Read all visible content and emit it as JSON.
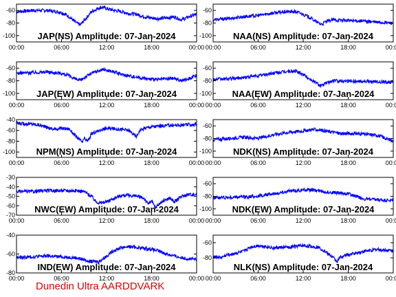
{
  "footer": "Dunedin Ultra AARDDVARK",
  "chart_data": [
    {
      "type": "line",
      "title": "JAP(NS) Amplitude: 07-Jan-2024",
      "xlim": [
        0,
        24
      ],
      "ylim": [
        -110,
        -50
      ],
      "yticks": [
        -60,
        -80,
        -100
      ],
      "xtick_labels": [
        "00:00",
        "06:00",
        "12:00",
        "18:00",
        "00:00"
      ],
      "series": [
        {
          "x": [
            0,
            2,
            4,
            6,
            7,
            8,
            8.5,
            9,
            10,
            11,
            11.5,
            12,
            13,
            14,
            15,
            16,
            17,
            18,
            19,
            20,
            21,
            22,
            23,
            24
          ],
          "y": [
            -62,
            -60,
            -60,
            -63,
            -70,
            -80,
            -83,
            -76,
            -62,
            -56,
            -55,
            -57,
            -60,
            -62,
            -65,
            -66,
            -70,
            -72,
            -73,
            -72,
            -70,
            -75,
            -70,
            -66
          ]
        }
      ]
    },
    {
      "type": "line",
      "title": "NAA(NS) Amplitude: 07-Jan-2024",
      "xlim": [
        0,
        24
      ],
      "ylim": [
        -110,
        -50
      ],
      "yticks": [
        -60,
        -80,
        -100
      ],
      "xtick_labels": [
        "00:00",
        "06:00",
        "12:00",
        "18:00",
        "00:00"
      ],
      "series": [
        {
          "x": [
            0,
            2,
            4,
            6,
            8,
            10,
            11,
            12,
            13,
            14,
            14.5,
            15,
            16,
            18,
            20,
            22,
            24
          ],
          "y": [
            -75,
            -73,
            -70,
            -68,
            -64,
            -62,
            -62,
            -66,
            -72,
            -80,
            -82,
            -78,
            -75,
            -76,
            -77,
            -79,
            -80
          ]
        }
      ]
    },
    {
      "type": "line",
      "title": "JAP(EW) Amplitude: 07-Jan-2024",
      "xlim": [
        0,
        24
      ],
      "ylim": [
        -110,
        -50
      ],
      "yticks": [
        -60,
        -80,
        -100
      ],
      "xtick_labels": [
        "00:00",
        "06:00",
        "12:00",
        "18:00",
        "00:00"
      ],
      "series": [
        {
          "x": [
            0,
            2,
            4,
            6,
            7,
            8,
            8.5,
            9,
            10,
            11,
            11.5,
            12,
            13,
            14,
            15,
            16,
            17,
            18,
            19,
            20,
            21,
            22,
            23,
            24
          ],
          "y": [
            -68,
            -67,
            -66,
            -68,
            -72,
            -78,
            -80,
            -75,
            -68,
            -64,
            -62,
            -63,
            -66,
            -70,
            -72,
            -74,
            -76,
            -78,
            -78,
            -77,
            -76,
            -80,
            -76,
            -72
          ]
        }
      ]
    },
    {
      "type": "line",
      "title": "NAA(EW) Amplitude: 07-Jan-2024",
      "xlim": [
        0,
        24
      ],
      "ylim": [
        -110,
        -50
      ],
      "yticks": [
        -60,
        -80,
        -100
      ],
      "xtick_labels": [
        "00:00",
        "06:00",
        "12:00",
        "18:00",
        "00:00"
      ],
      "series": [
        {
          "x": [
            0,
            2,
            4,
            6,
            8,
            10,
            11,
            12,
            13,
            14,
            14.5,
            15,
            16,
            18,
            20,
            22,
            24
          ],
          "y": [
            -78,
            -77,
            -75,
            -72,
            -68,
            -65,
            -65,
            -70,
            -78,
            -85,
            -88,
            -84,
            -80,
            -80,
            -81,
            -82,
            -82
          ]
        }
      ]
    },
    {
      "type": "line",
      "title": "NPM(NS) Amplitude: 07-Jan-2024",
      "xlim": [
        0,
        24
      ],
      "ylim": [
        -110,
        -40
      ],
      "yticks": [
        -40,
        -60,
        -80,
        -100
      ],
      "xtick_labels": [
        "00:00",
        "06:00",
        "12:00",
        "18:00",
        "00:00"
      ],
      "series": [
        {
          "x": [
            0,
            2,
            3,
            4,
            5,
            6,
            7,
            8,
            8.8,
            9,
            9.5,
            10,
            11,
            12,
            13,
            14,
            15,
            15.5,
            16,
            16.3,
            17,
            18,
            20,
            22,
            24
          ],
          "y": [
            -47,
            -48,
            -50,
            -54,
            -58,
            -56,
            -57,
            -72,
            -82,
            -75,
            -80,
            -66,
            -60,
            -56,
            -57,
            -58,
            -60,
            -66,
            -72,
            -62,
            -56,
            -53,
            -51,
            -50,
            -49
          ]
        }
      ]
    },
    {
      "type": "line",
      "title": "NDK(NS) Amplitude: 07-Jan-2024",
      "xlim": [
        0,
        24
      ],
      "ylim": [
        -110,
        -50
      ],
      "yticks": [
        -60,
        -80,
        -100
      ],
      "xtick_labels": [
        "00:00",
        "06:00",
        "12:00",
        "18:00",
        "00:00"
      ],
      "series": [
        {
          "x": [
            0,
            2,
            4,
            6,
            8,
            10,
            12,
            13,
            14,
            15,
            16,
            17,
            18,
            19,
            20,
            22,
            23,
            24
          ],
          "y": [
            -82,
            -80,
            -78,
            -80,
            -74,
            -70,
            -68,
            -66,
            -66,
            -68,
            -70,
            -72,
            -72,
            -72,
            -73,
            -75,
            -80,
            -84
          ]
        }
      ]
    },
    {
      "type": "line",
      "title": "NWC(EW) Amplitude: 07-Jan-2024",
      "xlim": [
        0,
        24
      ],
      "ylim": [
        -70,
        -30
      ],
      "yticks": [
        -30,
        -40,
        -50,
        -60,
        -70
      ],
      "xtick_labels": [
        "00:00",
        "06:00",
        "12:00",
        "18:00",
        "00:00"
      ],
      "series": [
        {
          "x": [
            0,
            2,
            4,
            6,
            8,
            9,
            10,
            10.5,
            11,
            12,
            13,
            14,
            15,
            16,
            17,
            17.5,
            18,
            18.5,
            19,
            20,
            20.5,
            21,
            22,
            23,
            24
          ],
          "y": [
            -45,
            -45,
            -44,
            -44,
            -44,
            -45,
            -50,
            -55,
            -57,
            -56,
            -52,
            -49,
            -49,
            -50,
            -52,
            -58,
            -55,
            -62,
            -58,
            -53,
            -52,
            -56,
            -50,
            -48,
            -48
          ]
        }
      ]
    },
    {
      "type": "line",
      "title": "NDK(EW) Amplitude: 07-Jan-2024",
      "xlim": [
        0,
        24
      ],
      "ylim": [
        -110,
        -50
      ],
      "yticks": [
        -60,
        -80,
        -100
      ],
      "xtick_labels": [
        "00:00",
        "06:00",
        "12:00",
        "18:00",
        "00:00"
      ],
      "series": [
        {
          "x": [
            0,
            2,
            4,
            6,
            8,
            10,
            12,
            13,
            14,
            15,
            16,
            17,
            18,
            19,
            20,
            22,
            24
          ],
          "y": [
            -82,
            -82,
            -81,
            -80,
            -76,
            -72,
            -70,
            -70,
            -71,
            -73,
            -74,
            -75,
            -76,
            -80,
            -84,
            -86,
            -87
          ]
        }
      ]
    },
    {
      "type": "line",
      "title": "IND(EW) Amplitude: 07-Jan-2024",
      "xlim": [
        0,
        24
      ],
      "ylim": [
        -80,
        -40
      ],
      "yticks": [
        -40,
        -60,
        -80
      ],
      "xtick_labels": [
        "00:00",
        "06:00",
        "12:00",
        "18:00",
        "00:00"
      ],
      "series": [
        {
          "x": [
            0,
            2,
            4,
            6,
            8,
            9,
            10,
            11,
            12,
            13,
            14,
            15,
            16,
            17,
            18,
            19,
            20,
            21,
            22,
            23,
            24
          ],
          "y": [
            -64,
            -63,
            -62,
            -63,
            -64,
            -66,
            -68,
            -68,
            -62,
            -56,
            -53,
            -52,
            -53,
            -54,
            -55,
            -57,
            -60,
            -62,
            -64,
            -65,
            -66
          ]
        }
      ]
    },
    {
      "type": "line",
      "title": "NLK(NS) Amplitude: 07-Jan-2024",
      "xlim": [
        0,
        24
      ],
      "ylim": [
        -100,
        -50
      ],
      "yticks": [
        -60,
        -80
      ],
      "xtick_labels": [
        "00:00",
        "06:00",
        "12:00",
        "18:00",
        "00:00"
      ],
      "series": [
        {
          "x": [
            0,
            1,
            2,
            4,
            5,
            6,
            7,
            8,
            10,
            12,
            14,
            15,
            16,
            16.5,
            17,
            18,
            19,
            20,
            21,
            22,
            24
          ],
          "y": [
            -78,
            -80,
            -76,
            -72,
            -66,
            -64,
            -65,
            -67,
            -66,
            -64,
            -66,
            -72,
            -80,
            -85,
            -79,
            -76,
            -74,
            -72,
            -70,
            -69,
            -71
          ]
        }
      ]
    }
  ]
}
